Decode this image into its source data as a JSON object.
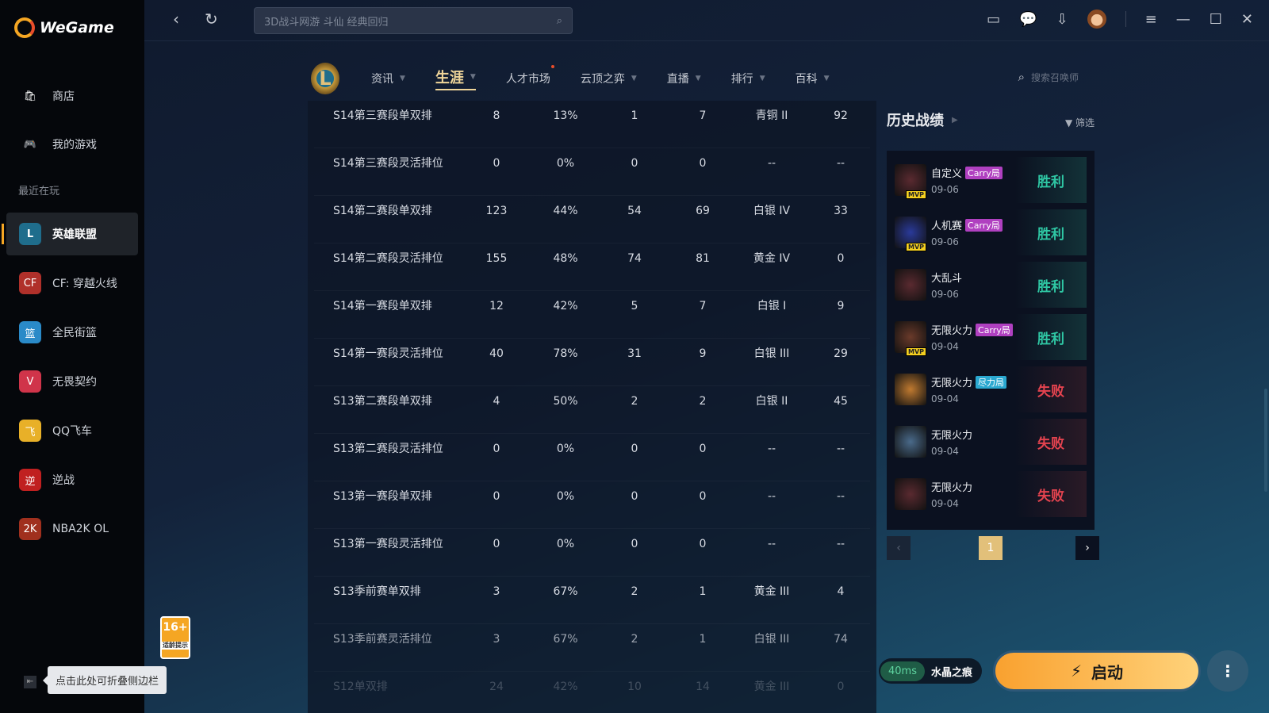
{
  "app": {
    "name": "WeGame"
  },
  "sidebar": {
    "items": [
      {
        "label": "商店",
        "icon": "store-bag-icon"
      },
      {
        "label": "我的游戏",
        "icon": "gamepad-icon"
      }
    ],
    "recent_label": "最近在玩",
    "games": [
      {
        "label": "英雄联盟",
        "color": "#1f6d8c",
        "glyph": "L",
        "active": true
      },
      {
        "label": "CF: 穿越火线",
        "color": "#b0302a",
        "glyph": "CF"
      },
      {
        "label": "全民街篮",
        "color": "#2a8ac8",
        "glyph": "篮"
      },
      {
        "label": "无畏契约",
        "color": "#d0344a",
        "glyph": "V"
      },
      {
        "label": "QQ飞车",
        "color": "#e8b028",
        "glyph": "飞"
      },
      {
        "label": "逆战",
        "color": "#c02020",
        "glyph": "逆"
      },
      {
        "label": "NBA2K OL",
        "color": "#a0301e",
        "glyph": "2K"
      }
    ],
    "rating": {
      "age": "16+",
      "text": "适龄提示"
    },
    "collapse_tooltip": "点击此处可折叠侧边栏"
  },
  "topbar": {
    "search_placeholder": "3D战斗网游 斗仙 经典回归"
  },
  "game_nav": {
    "logo": "L",
    "tabs": [
      {
        "label": "资讯",
        "caret": true
      },
      {
        "label": "生涯",
        "caret": true,
        "active": true
      },
      {
        "label": "人才市场",
        "dot": true
      },
      {
        "label": "云顶之弈",
        "caret": true
      },
      {
        "label": "直播",
        "caret": true
      },
      {
        "label": "排行",
        "caret": true
      },
      {
        "label": "百科",
        "caret": true
      }
    ],
    "summoner_search_placeholder": "搜索召唤师"
  },
  "career_table": {
    "rows": [
      [
        "S14第三赛段单双排",
        "8",
        "13%",
        "1",
        "7",
        "青铜 II",
        "92"
      ],
      [
        "S14第三赛段灵活排位",
        "0",
        "0%",
        "0",
        "0",
        "--",
        "--"
      ],
      [
        "S14第二赛段单双排",
        "123",
        "44%",
        "54",
        "69",
        "白银 IV",
        "33"
      ],
      [
        "S14第二赛段灵活排位",
        "155",
        "48%",
        "74",
        "81",
        "黄金 IV",
        "0"
      ],
      [
        "S14第一赛段单双排",
        "12",
        "42%",
        "5",
        "7",
        "白银 I",
        "9"
      ],
      [
        "S14第一赛段灵活排位",
        "40",
        "78%",
        "31",
        "9",
        "白银 III",
        "29"
      ],
      [
        "S13第二赛段单双排",
        "4",
        "50%",
        "2",
        "2",
        "白银 II",
        "45"
      ],
      [
        "S13第二赛段灵活排位",
        "0",
        "0%",
        "0",
        "0",
        "--",
        "--"
      ],
      [
        "S13第一赛段单双排",
        "0",
        "0%",
        "0",
        "0",
        "--",
        "--"
      ],
      [
        "S13第一赛段灵活排位",
        "0",
        "0%",
        "0",
        "0",
        "--",
        "--"
      ],
      [
        "S13季前赛单双排",
        "3",
        "67%",
        "2",
        "1",
        "黄金 III",
        "4"
      ],
      [
        "S13季前赛灵活排位",
        "3",
        "67%",
        "2",
        "1",
        "白银 III",
        "74"
      ],
      [
        "S12单双排",
        "24",
        "42%",
        "10",
        "14",
        "黄金 III",
        "0"
      ]
    ]
  },
  "history": {
    "title": "历史战绩",
    "filter_label": "筛选",
    "matches": [
      {
        "mode": "自定义",
        "badge": "Carry局",
        "badge_color": "#b040c0",
        "mvp": true,
        "date": "09-06",
        "result": "胜利",
        "win": true,
        "champ_color": "#5a2a30"
      },
      {
        "mode": "人机赛",
        "badge": "Carry局",
        "badge_color": "#b040c0",
        "mvp": true,
        "date": "09-06",
        "result": "胜利",
        "win": true,
        "champ_color": "#2a3a9a"
      },
      {
        "mode": "大乱斗",
        "date": "09-06",
        "result": "胜利",
        "win": true,
        "champ_color": "#5a2a30"
      },
      {
        "mode": "无限火力",
        "badge": "Carry局",
        "badge_color": "#b040c0",
        "mvp": true,
        "date": "09-04",
        "result": "胜利",
        "win": true,
        "champ_color": "#6a3a2a"
      },
      {
        "mode": "无限火力",
        "badge": "尽力局",
        "badge_color": "#2aa8d0",
        "date": "09-04",
        "result": "失败",
        "win": false,
        "champ_color": "#c07a30"
      },
      {
        "mode": "无限火力",
        "date": "09-04",
        "result": "失败",
        "win": false,
        "champ_color": "#4a6a8a"
      },
      {
        "mode": "无限火力",
        "date": "09-04",
        "result": "失败",
        "win": false,
        "champ_color": "#5a2a30"
      }
    ],
    "mvp_label": "MVP",
    "current_page": "1"
  },
  "footer": {
    "ping": "40ms",
    "server": "水晶之痕",
    "launch_label": "启动"
  }
}
